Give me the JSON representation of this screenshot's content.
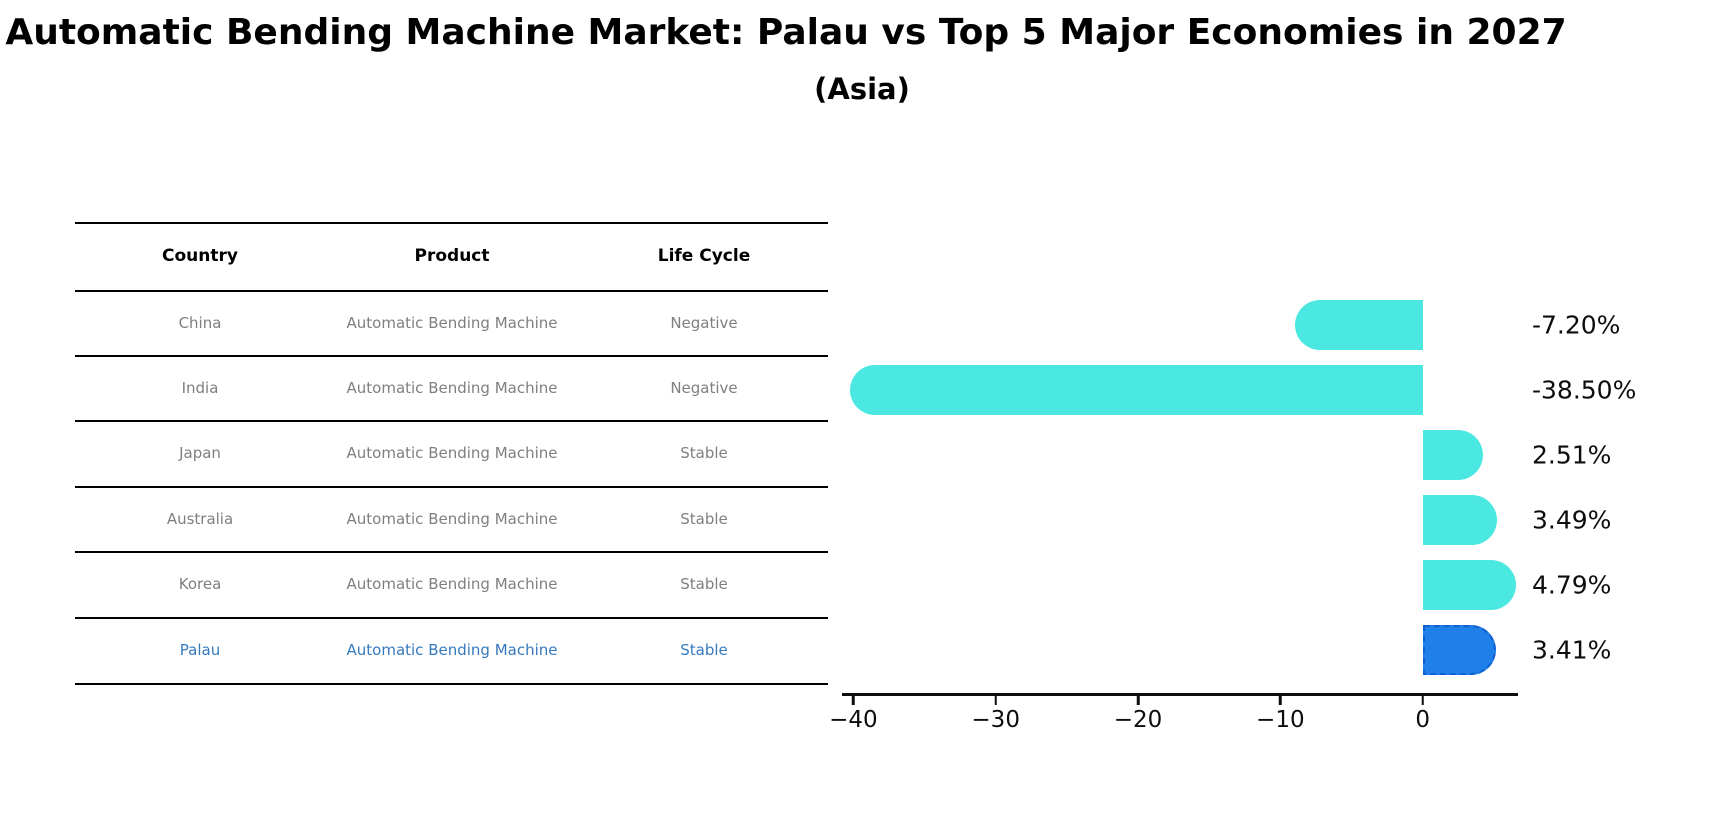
{
  "title": "Automatic Bending Machine Market: Palau vs Top 5 Major Economies in 2027",
  "subtitle": "(Asia)",
  "table": {
    "headers": [
      "Country",
      "Product",
      "Life Cycle"
    ],
    "rows": [
      {
        "country": "China",
        "product": "Automatic Bending Machine",
        "life_cycle": "Negative",
        "highlight": false
      },
      {
        "country": "India",
        "product": "Automatic Bending Machine",
        "life_cycle": "Negative",
        "highlight": false
      },
      {
        "country": "Japan",
        "product": "Automatic Bending Machine",
        "life_cycle": "Stable",
        "highlight": false
      },
      {
        "country": "Australia",
        "product": "Automatic Bending Machine",
        "life_cycle": "Stable",
        "highlight": false
      },
      {
        "country": "Korea",
        "product": "Automatic Bending Machine",
        "life_cycle": "Stable",
        "highlight": false
      },
      {
        "country": "Palau",
        "product": "Automatic Bending Machine",
        "life_cycle": "Stable",
        "highlight": true
      }
    ]
  },
  "chart_data": {
    "type": "bar",
    "orientation": "horizontal",
    "title": "Automatic Bending Machine Market: Palau vs Top 5 Major Economies in 2027 (Asia)",
    "categories": [
      "China",
      "India",
      "Japan",
      "Australia",
      "Korea",
      "Palau"
    ],
    "values": [
      -7.2,
      -38.5,
      2.51,
      3.49,
      4.79,
      3.41
    ],
    "value_labels": [
      "-7.20%",
      "-38.50%",
      "2.51%",
      "3.49%",
      "4.79%",
      "3.41%"
    ],
    "x_ticks": [
      -40,
      -30,
      -20,
      -10,
      0
    ],
    "x_tick_labels": [
      "−40",
      "−30",
      "−20",
      "−10",
      "0"
    ],
    "xlim": [
      -40.8,
      6.7
    ],
    "grid": false,
    "legend": "none",
    "bar_color": "#4ae8e1",
    "highlight_bar_color": "#1e80e8",
    "highlight_index": 5
  },
  "colors": {
    "bar_cyan": "#4ae8e1",
    "bar_blue": "#1e80e8",
    "bar_blue_dash": "#0f5fd0",
    "highlight_text": "#3579be",
    "row_text": "#7f7f7f",
    "header_text": "#000000",
    "axis": "#0d0d0d"
  }
}
